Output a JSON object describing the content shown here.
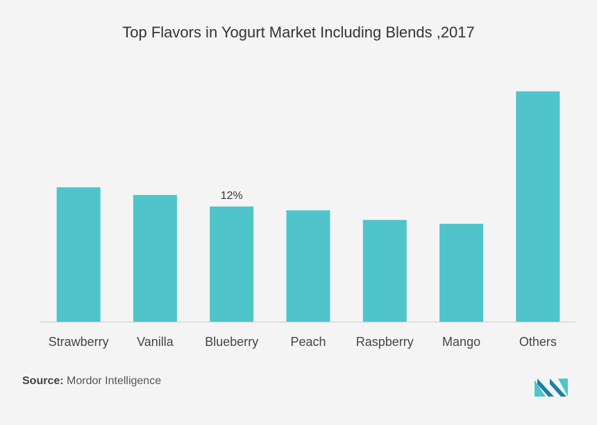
{
  "chart_data": {
    "type": "bar",
    "title": "Top Flavors in Yogurt Market Including Blends ,2017",
    "xlabel": "",
    "ylabel": "",
    "categories": [
      "Strawberry",
      "Vanilla",
      "Blueberry",
      "Peach",
      "Raspberry",
      "Mango",
      "Others"
    ],
    "values": [
      14,
      13.2,
      12,
      11.6,
      10.6,
      10.2,
      24
    ],
    "data_labels": [
      "",
      "",
      "12%",
      "",
      "",
      "",
      ""
    ],
    "ylim": [
      0,
      26
    ],
    "grid": false,
    "colors": {
      "bar": "#4fc4cb",
      "axis": "#cccccc",
      "text": "#444444"
    }
  },
  "source": {
    "label": "Source:",
    "text": "Mordor Intelligence"
  },
  "logo": {
    "icon": "mordor-intelligence-logo",
    "colors": [
      "#1d7ea0",
      "#4fc4cb"
    ]
  }
}
